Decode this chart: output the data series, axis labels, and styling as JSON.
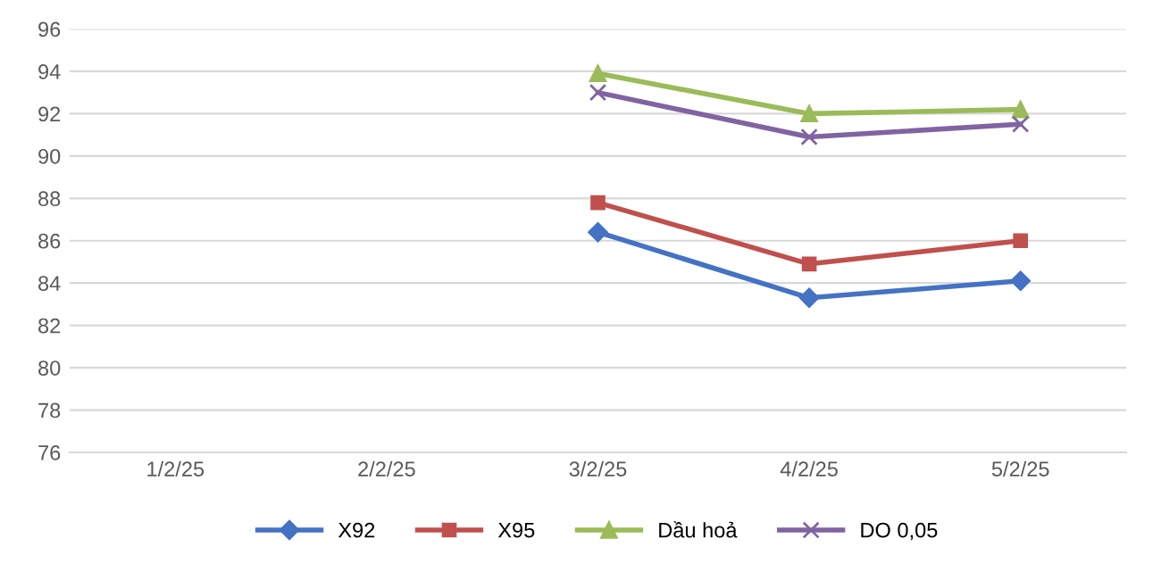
{
  "chart_data": {
    "type": "line",
    "categories": [
      "1/2/25",
      "2/2/25",
      "3/2/25",
      "4/2/25",
      "5/2/25"
    ],
    "series": [
      {
        "name": "X92",
        "color": "#4472c4",
        "marker": "diamond",
        "values": [
          null,
          null,
          86.4,
          83.3,
          84.1
        ]
      },
      {
        "name": "X95",
        "color": "#c0504d",
        "marker": "square",
        "values": [
          null,
          null,
          87.8,
          84.9,
          86.0
        ]
      },
      {
        "name": "Dầu hoả",
        "color": "#9bbb59",
        "marker": "triangle",
        "values": [
          null,
          null,
          93.9,
          92.0,
          92.2
        ]
      },
      {
        "name": "DO 0,05",
        "color": "#8064a2",
        "marker": "cross",
        "values": [
          null,
          null,
          93.0,
          90.9,
          91.5
        ]
      }
    ],
    "ylim": [
      76,
      96
    ],
    "yticks": [
      76,
      78,
      80,
      82,
      84,
      86,
      88,
      90,
      92,
      94,
      96
    ],
    "grid": "y",
    "legend": "bottom",
    "line_style": "solid"
  }
}
